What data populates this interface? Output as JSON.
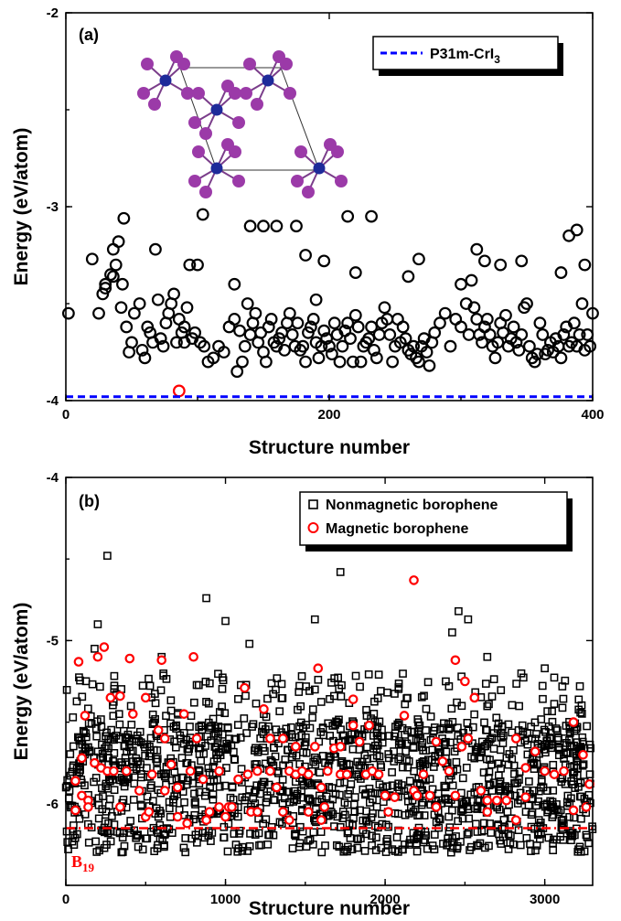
{
  "chart_data": [
    {
      "panel": "(a)",
      "type": "scatter",
      "xlabel": "Structure number",
      "ylabel": "Energy (eV/atom)",
      "xlim": [
        0,
        400
      ],
      "ylim": [
        -4,
        -2
      ],
      "xticks": [
        "0",
        "200",
        "400"
      ],
      "yticks": [
        "-2",
        "-3",
        "-4"
      ],
      "grid": false,
      "legend_position": "top-right",
      "reference_line": {
        "name": "P31m-CrI",
        "name_sub": "3",
        "y": -3.98,
        "color": "#0000ff",
        "style": "dashed"
      },
      "inset": "crystal structure image (top view, blue and purple atoms)",
      "series": [
        {
          "name": "",
          "color": "#000000",
          "marker": "open-circle",
          "x": [
            2,
            20,
            25,
            30,
            34,
            36,
            38,
            40,
            42,
            44,
            46,
            48,
            50,
            52,
            56,
            60,
            62,
            64,
            66,
            68,
            70,
            72,
            74,
            76,
            78,
            80,
            82,
            84,
            86,
            88,
            90,
            92,
            94,
            96,
            98,
            100,
            102,
            105,
            108,
            112,
            116,
            120,
            124,
            128,
            130,
            132,
            134,
            136,
            138,
            140,
            142,
            144,
            146,
            148,
            150,
            152,
            154,
            156,
            158,
            160,
            162,
            164,
            166,
            168,
            170,
            172,
            174,
            176,
            178,
            180,
            182,
            184,
            186,
            188,
            190,
            192,
            194,
            196,
            198,
            200,
            202,
            204,
            206,
            208,
            210,
            212,
            214,
            216,
            218,
            220,
            222,
            224,
            226,
            228,
            230,
            232,
            234,
            236,
            238,
            240,
            242,
            244,
            246,
            248,
            250,
            252,
            254,
            256,
            258,
            260,
            262,
            264,
            266,
            268,
            270,
            272,
            274,
            276,
            278,
            280,
            284,
            288,
            292,
            296,
            300,
            304,
            306,
            308,
            310,
            312,
            314,
            316,
            318,
            320,
            322,
            324,
            326,
            328,
            330,
            332,
            334,
            336,
            338,
            340,
            342,
            344,
            346,
            348,
            350,
            352,
            354,
            356,
            358,
            360,
            362,
            364,
            366,
            368,
            370,
            372,
            374,
            376,
            378,
            380,
            382,
            384,
            386,
            388,
            390,
            392,
            394,
            396,
            398,
            400,
            160,
            150,
            140,
            175,
            232,
            214,
            182,
            268,
            382,
            388,
            43,
            36,
            30,
            104,
            190,
            196,
            330,
            312,
            318,
            346,
            376,
            394,
            128,
            220,
            260,
            300,
            28,
            58,
            90
          ],
          "y": [
            -3.55,
            -3.27,
            -3.55,
            -3.4,
            -3.35,
            -3.22,
            -3.3,
            -3.18,
            -3.52,
            -3.06,
            -3.62,
            -3.75,
            -3.7,
            -3.55,
            -3.5,
            -3.78,
            -3.62,
            -3.65,
            -3.7,
            -3.22,
            -3.48,
            -3.68,
            -3.72,
            -3.6,
            -3.55,
            -3.5,
            -3.45,
            -3.7,
            -3.58,
            -3.65,
            -3.7,
            -3.52,
            -3.3,
            -3.68,
            -3.65,
            -3.3,
            -3.7,
            -3.72,
            -3.8,
            -3.78,
            -3.72,
            -3.75,
            -3.62,
            -3.58,
            -3.85,
            -3.64,
            -3.8,
            -3.72,
            -3.5,
            -3.66,
            -3.6,
            -3.55,
            -3.7,
            -3.65,
            -3.75,
            -3.8,
            -3.62,
            -3.58,
            -3.7,
            -3.72,
            -3.68,
            -3.65,
            -3.74,
            -3.6,
            -3.55,
            -3.66,
            -3.72,
            -3.6,
            -3.74,
            -3.72,
            -3.8,
            -3.65,
            -3.62,
            -3.58,
            -3.7,
            -3.78,
            -3.72,
            -3.64,
            -3.68,
            -3.72,
            -3.76,
            -3.6,
            -3.66,
            -3.8,
            -3.72,
            -3.64,
            -3.6,
            -3.68,
            -3.8,
            -3.56,
            -3.62,
            -3.8,
            -3.72,
            -3.7,
            -3.68,
            -3.62,
            -3.74,
            -3.78,
            -3.66,
            -3.6,
            -3.52,
            -3.58,
            -3.66,
            -3.8,
            -3.72,
            -3.58,
            -3.7,
            -3.62,
            -3.68,
            -3.74,
            -3.76,
            -3.72,
            -3.78,
            -3.8,
            -3.72,
            -3.68,
            -3.75,
            -3.82,
            -3.7,
            -3.65,
            -3.6,
            -3.55,
            -3.72,
            -3.58,
            -3.62,
            -3.5,
            -3.66,
            -3.38,
            -3.52,
            -3.58,
            -3.66,
            -3.7,
            -3.62,
            -3.58,
            -3.66,
            -3.72,
            -3.78,
            -3.7,
            -3.6,
            -3.65,
            -3.56,
            -3.72,
            -3.68,
            -3.62,
            -3.7,
            -3.74,
            -3.66,
            -3.52,
            -3.5,
            -3.72,
            -3.78,
            -3.8,
            -3.76,
            -3.6,
            -3.66,
            -3.76,
            -3.74,
            -3.7,
            -3.75,
            -3.68,
            -3.72,
            -3.78,
            -3.66,
            -3.62,
            -3.72,
            -3.7,
            -3.6,
            -3.72,
            -3.66,
            -3.5,
            -3.74,
            -3.66,
            -3.72,
            -3.55,
            -3.1,
            -3.1,
            -3.1,
            -3.1,
            -3.05,
            -3.05,
            -3.25,
            -3.27,
            -3.15,
            -3.12,
            -3.4,
            -3.36,
            -3.42,
            -3.04,
            -3.48,
            -3.28,
            -3.3,
            -3.22,
            -3.28,
            -3.28,
            -3.34,
            -3.3,
            -3.4,
            -3.34,
            -3.36,
            -3.4,
            -3.45,
            -3.74,
            -3.62
          ],
          "point_size": "large"
        },
        {
          "name": "",
          "color": "#ff0000",
          "marker": "open-circle",
          "x": [
            86
          ],
          "y": [
            -3.95
          ],
          "point_size": "large"
        }
      ]
    },
    {
      "panel": "(b)",
      "type": "scatter",
      "xlabel": "Structure number",
      "ylabel": "Energy (eV/atom)",
      "xlim": [
        0,
        3300
      ],
      "ylim": [
        -6.5,
        -4
      ],
      "xticks": [
        "0",
        "1000",
        "2000",
        "3000"
      ],
      "yticks": [
        "-4",
        "-5",
        "-6"
      ],
      "grid": false,
      "legend_position": "top-right",
      "reference_line": {
        "name": "B",
        "name_sub": "19",
        "y": -6.15,
        "color": "#ff0000",
        "style": "dash-dot"
      },
      "series": [
        {
          "name": "Nonmagnetic borophene",
          "color": "#000000",
          "marker": "open-square",
          "dense_band": {
            "x_range": [
              0,
              3300
            ],
            "y_range": [
              -6.3,
              -5.5
            ],
            "count": 1400
          },
          "sparse_band": {
            "x_range": [
              0,
              3300
            ],
            "y_range": [
              -5.5,
              -5.2
            ],
            "count": 160
          },
          "x": [
            260,
            1720,
            880,
            600,
            1560,
            1000,
            1150,
            2460,
            2420,
            2400,
            2520,
            2640,
            200,
            2380,
            3000,
            180,
            2300,
            2480,
            3220,
            1240,
            1560
          ],
          "y": [
            -4.48,
            -4.58,
            -4.74,
            -5.1,
            -4.87,
            -4.88,
            -5.02,
            -4.82,
            -4.95,
            -5.28,
            -4.87,
            -5.1,
            -4.9,
            -5.25,
            -5.17,
            -5.05,
            -5.6,
            -5.4,
            -5.28,
            -5.45,
            -5.3
          ],
          "point_size": "small"
        },
        {
          "name": "Magnetic borophene",
          "color": "#ff0000",
          "marker": "open-circle",
          "x": [
            80,
            120,
            60,
            100,
            140,
            180,
            220,
            260,
            300,
            340,
            380,
            420,
            460,
            500,
            540,
            580,
            620,
            660,
            700,
            740,
            780,
            820,
            860,
            900,
            960,
            1020,
            1080,
            1140,
            1200,
            1240,
            1280,
            1320,
            1360,
            1400,
            1440,
            1480,
            1520,
            1560,
            1600,
            1640,
            1680,
            1720,
            1760,
            1800,
            1840,
            1880,
            1920,
            1960,
            2000,
            2060,
            2120,
            2180,
            2200,
            2240,
            2280,
            2320,
            2360,
            2400,
            2440,
            2480,
            2520,
            2560,
            2600,
            2640,
            2700,
            2760,
            2820,
            2880,
            2940,
            3000,
            3060,
            3120,
            3180,
            3240,
            3280,
            200,
            400,
            600,
            800,
            1580,
            2440,
            2180,
            240,
            280,
            1120,
            1720,
            2500,
            2560,
            1280,
            1800,
            620,
            880,
            1040,
            1360,
            1440,
            1520,
            2020,
            2880,
            3180,
            60,
            100,
            140,
            340,
            500,
            700,
            960,
            1160,
            1620,
            1900,
            2320,
            2640,
            2820,
            3260,
            520,
            760,
            1000,
            1200,
            1400,
            1600
          ],
          "y": [
            -5.13,
            -5.46,
            -5.86,
            -5.72,
            -5.98,
            -5.75,
            -5.78,
            -5.8,
            -5.8,
            -5.34,
            -5.8,
            -5.45,
            -5.92,
            -5.35,
            -5.82,
            -5.55,
            -5.92,
            -5.76,
            -5.9,
            -5.45,
            -5.8,
            -5.6,
            -5.85,
            -6.05,
            -5.8,
            -6.02,
            -5.85,
            -5.82,
            -5.8,
            -5.42,
            -5.8,
            -5.9,
            -5.6,
            -5.8,
            -5.82,
            -5.8,
            -5.82,
            -5.65,
            -5.9,
            -5.8,
            -5.66,
            -5.82,
            -5.82,
            -5.52,
            -5.62,
            -5.82,
            -5.8,
            -5.82,
            -5.95,
            -5.96,
            -5.46,
            -5.92,
            -5.95,
            -5.82,
            -5.95,
            -5.62,
            -5.74,
            -5.8,
            -5.95,
            -5.65,
            -5.6,
            -5.35,
            -5.92,
            -5.98,
            -5.98,
            -5.98,
            -5.6,
            -5.96,
            -5.68,
            -5.8,
            -5.82,
            -5.8,
            -5.5,
            -5.7,
            -5.88,
            -5.1,
            -5.11,
            -5.12,
            -5.1,
            -5.17,
            -5.12,
            -4.63,
            -5.04,
            -5.35,
            -5.29,
            -5.65,
            -5.25,
            -5.35,
            -5.6,
            -5.36,
            -5.6,
            -6.1,
            -6.02,
            -6.05,
            -5.65,
            -6.05,
            -6.05,
            -5.78,
            -6.04,
            -6.04,
            -5.95,
            -6.02,
            -6.02,
            -6.08,
            -6.08,
            -6.02,
            -6.05,
            -6.02,
            -5.52,
            -6.02,
            -6.05,
            -6.1,
            -6.02,
            -6.05,
            -6.12,
            -6.08,
            -6.05,
            -6.1,
            -6.1
          ],
          "point_size": "small"
        }
      ]
    }
  ]
}
